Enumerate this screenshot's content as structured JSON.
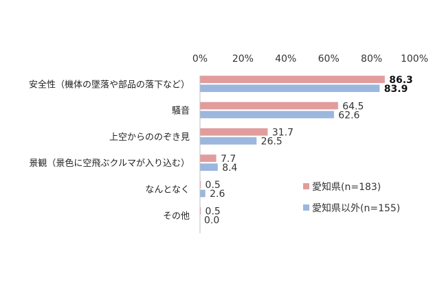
{
  "chart_data": {
    "type": "bar",
    "orientation": "horizontal",
    "xlim": [
      0,
      100
    ],
    "ticks": [
      {
        "value": 0,
        "label": "0%"
      },
      {
        "value": 20,
        "label": "20%"
      },
      {
        "value": 40,
        "label": "40%"
      },
      {
        "value": 60,
        "label": "60%"
      },
      {
        "value": 80,
        "label": "80%"
      },
      {
        "value": 100,
        "label": "100%"
      }
    ],
    "categories": [
      "安全性（機体の墜落や部品の落下など）",
      "騒音",
      "上空からののぞき見",
      "景観（景色に空飛ぶクルマが入り込む）",
      "なんとなく",
      "その他"
    ],
    "series": [
      {
        "name": "愛知県(n=183)",
        "color": "#e29c9c",
        "values": [
          86.3,
          64.5,
          31.7,
          7.7,
          0.5,
          0.5
        ],
        "labels": [
          "86.3",
          "64.5",
          "31.7",
          "7.7",
          "0.5",
          "0.5"
        ]
      },
      {
        "name": "愛知県以外(n=155)",
        "color": "#9bb7dd",
        "values": [
          83.9,
          62.6,
          26.5,
          8.4,
          2.6,
          0.0
        ],
        "labels": [
          "83.9",
          "62.6",
          "26.5",
          "8.4",
          "2.6",
          "0.0"
        ]
      }
    ],
    "emphasized_labels": [
      [
        0,
        0
      ],
      [
        1,
        0
      ]
    ],
    "legend_position": "bottom-right",
    "grid": false
  }
}
